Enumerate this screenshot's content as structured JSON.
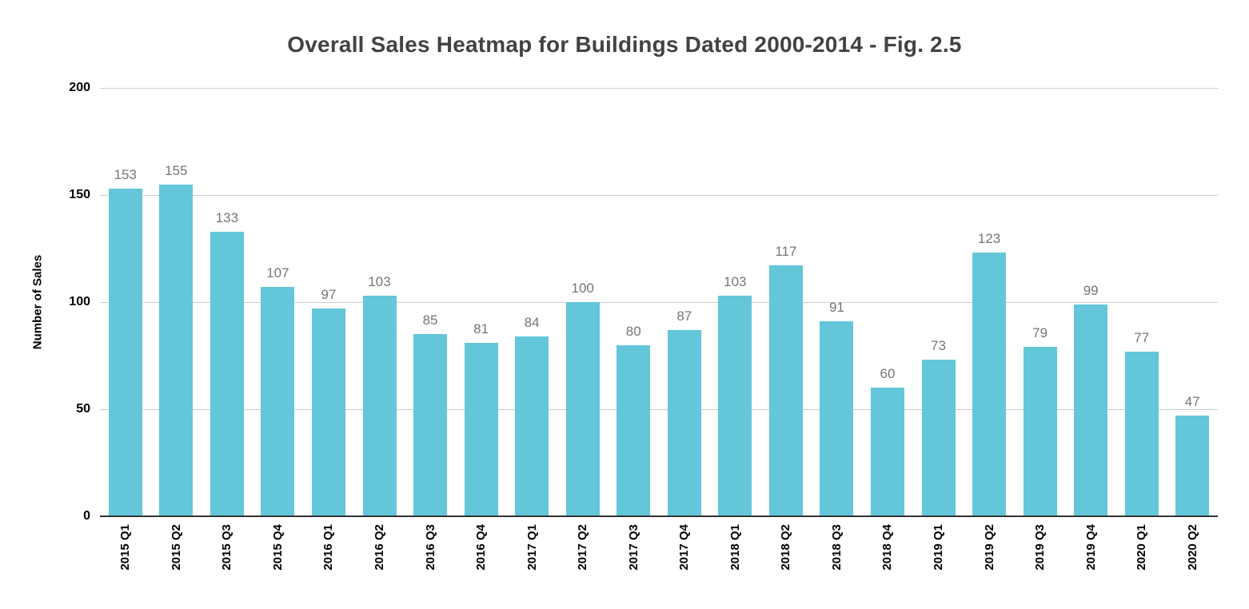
{
  "page": {
    "background": "#ffffff"
  },
  "chart_data": {
    "type": "bar",
    "title": "Overall Sales Heatmap for Buildings Dated 2000-2014 - Fig. 2.5",
    "xlabel": "",
    "ylabel": "Number of Sales",
    "categories": [
      "2015 Q1",
      "2015 Q2",
      "2015 Q3",
      "2015 Q4",
      "2016 Q1",
      "2016 Q2",
      "2016 Q3",
      "2016 Q4",
      "2017 Q1",
      "2017 Q2",
      "2017 Q3",
      "2017 Q4",
      "2018 Q1",
      "2018 Q2",
      "2018 Q3",
      "2018 Q4",
      "2019 Q1",
      "2019 Q2",
      "2019 Q3",
      "2019 Q4",
      "2020 Q1",
      "2020 Q2"
    ],
    "values": [
      153,
      155,
      133,
      107,
      97,
      103,
      85,
      81,
      84,
      100,
      80,
      87,
      103,
      117,
      91,
      60,
      73,
      123,
      79,
      99,
      77,
      47
    ],
    "yticks": [
      0,
      50,
      100,
      150,
      200
    ],
    "ylim": [
      0,
      200
    ],
    "grid": true,
    "legend_position": "none",
    "value_labels_shown": true,
    "colors": {
      "bar": "#63C6D9",
      "value_label": "#757575",
      "gridline": "#CCCCCC",
      "axis_line": "#333333",
      "title": "#424242",
      "tick_label": "#000000"
    }
  }
}
